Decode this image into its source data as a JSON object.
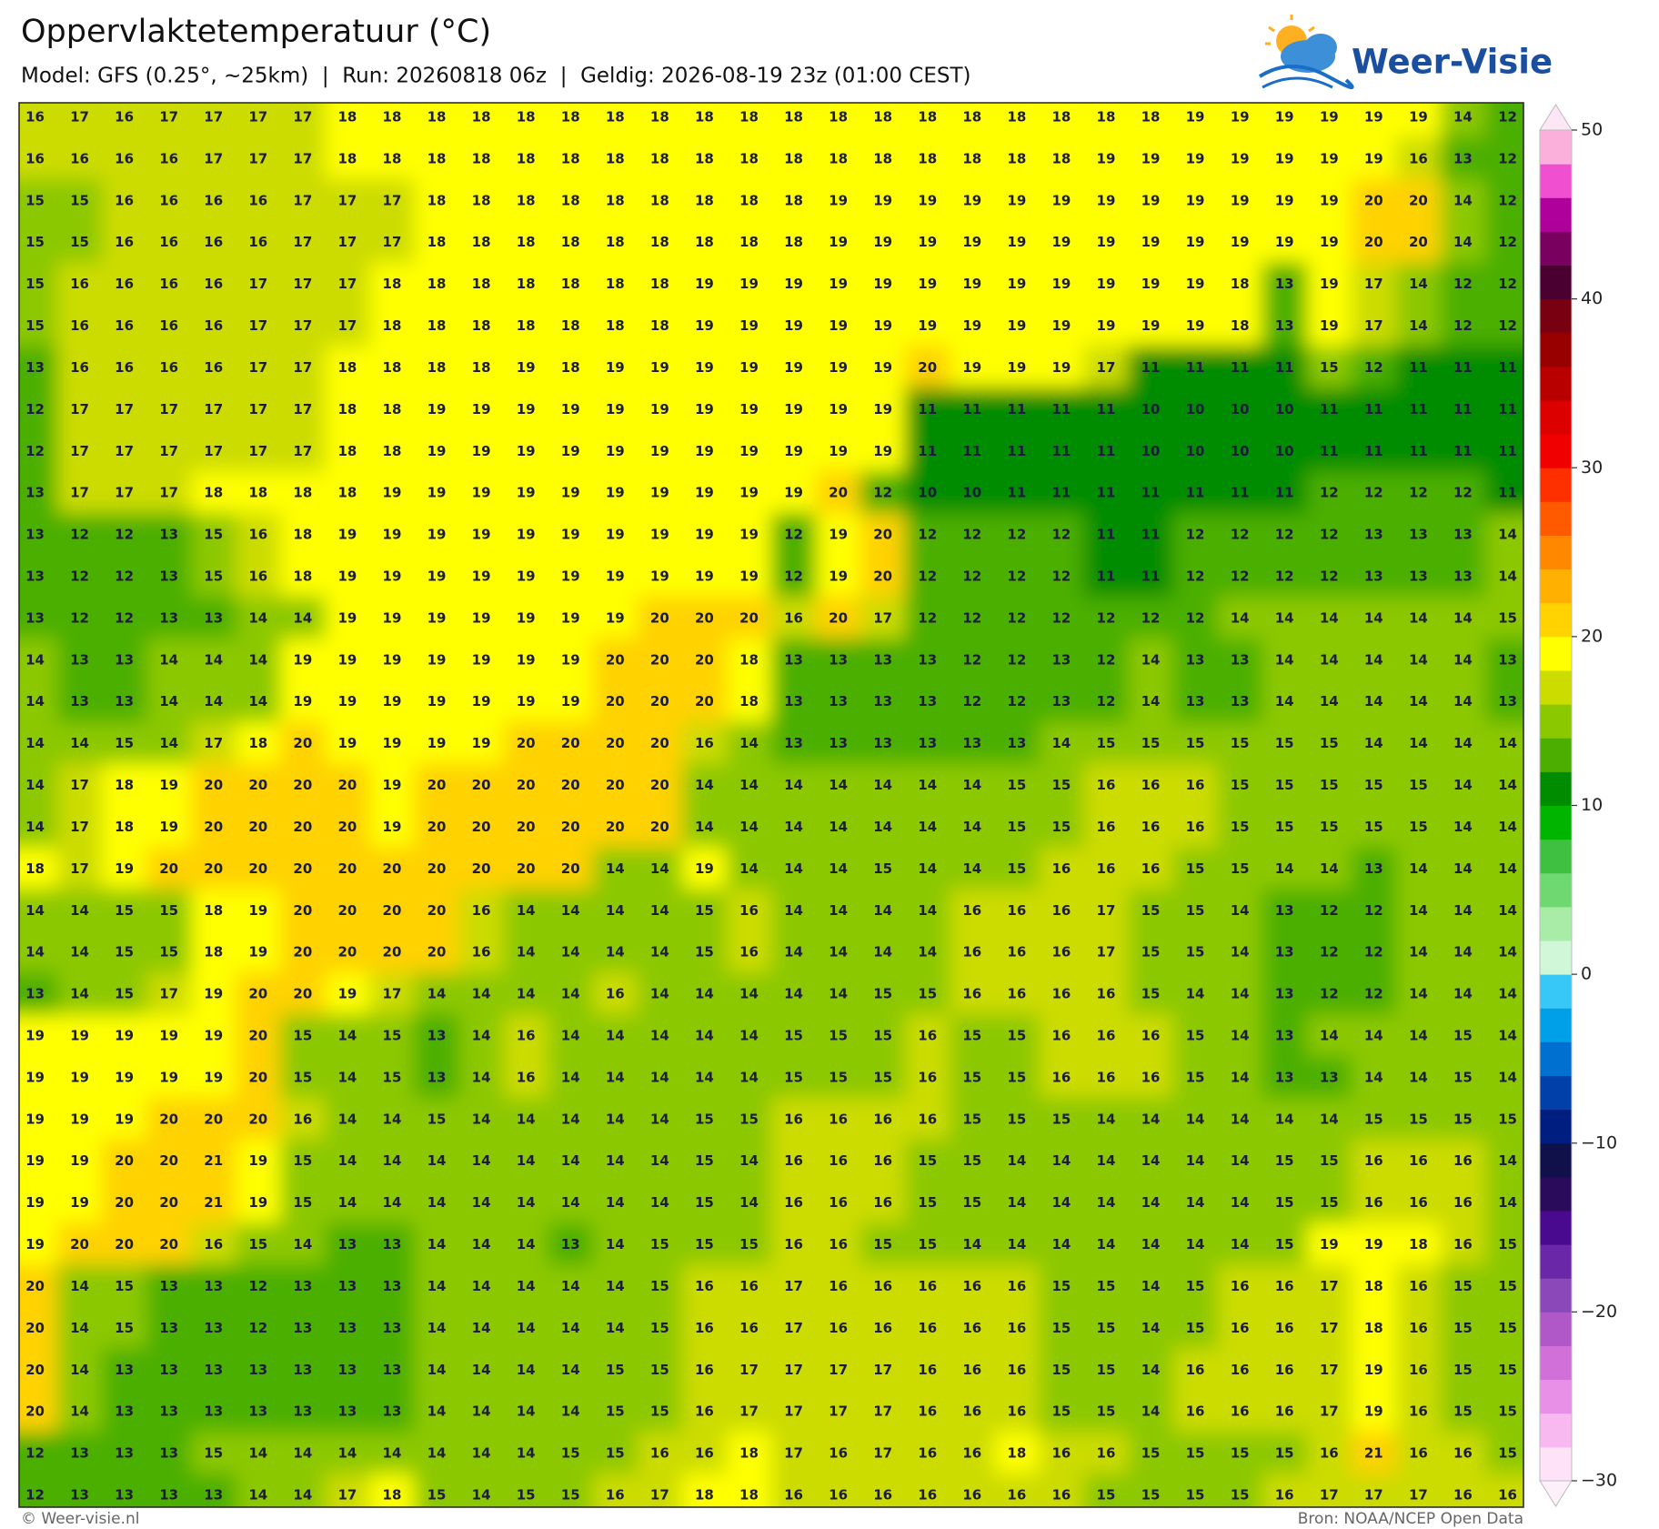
{
  "header": {
    "title": "Oppervlaktetemperatuur (°C)",
    "subtitle": "Model: GFS (0.25°, ~25km)  |  Run: 20260818 06z  |  Geldig: 2026-08-19 23z (01:00 CEST)",
    "logo": "Weer-Visie"
  },
  "chart_data": {
    "type": "heatmap",
    "values": [
      [
        16,
        17,
        16,
        17,
        17,
        17,
        17,
        18,
        18,
        18,
        18,
        18,
        18,
        18,
        18,
        18,
        18,
        18,
        18,
        18,
        18,
        18,
        18,
        18,
        18,
        18,
        19,
        19,
        19,
        19,
        19,
        19,
        14,
        12
      ],
      [
        16,
        16,
        16,
        16,
        17,
        17,
        17,
        18,
        18,
        18,
        18,
        18,
        18,
        18,
        18,
        18,
        18,
        18,
        18,
        18,
        18,
        18,
        18,
        18,
        19,
        19,
        19,
        19,
        19,
        19,
        19,
        16,
        13,
        12
      ],
      [
        15,
        15,
        16,
        16,
        16,
        16,
        17,
        17,
        17,
        18,
        18,
        18,
        18,
        18,
        18,
        18,
        18,
        18,
        19,
        19,
        19,
        19,
        19,
        19,
        19,
        19,
        19,
        19,
        19,
        19,
        20,
        20,
        14,
        12
      ],
      [
        15,
        15,
        16,
        16,
        16,
        16,
        17,
        17,
        17,
        18,
        18,
        18,
        18,
        18,
        18,
        18,
        18,
        18,
        19,
        19,
        19,
        19,
        19,
        19,
        19,
        19,
        19,
        19,
        19,
        19,
        20,
        20,
        14,
        12
      ],
      [
        15,
        16,
        16,
        16,
        16,
        17,
        17,
        17,
        18,
        18,
        18,
        18,
        18,
        18,
        18,
        19,
        19,
        19,
        19,
        19,
        19,
        19,
        19,
        19,
        19,
        19,
        19,
        18,
        13,
        19,
        17,
        14,
        12,
        12
      ],
      [
        15,
        16,
        16,
        16,
        16,
        17,
        17,
        17,
        18,
        18,
        18,
        18,
        18,
        18,
        18,
        19,
        19,
        19,
        19,
        19,
        19,
        19,
        19,
        19,
        19,
        19,
        19,
        18,
        13,
        19,
        17,
        14,
        12,
        12
      ],
      [
        13,
        16,
        16,
        16,
        16,
        17,
        17,
        18,
        18,
        18,
        18,
        19,
        18,
        19,
        19,
        19,
        19,
        19,
        19,
        19,
        20,
        19,
        19,
        19,
        17,
        11,
        11,
        11,
        11,
        15,
        12,
        11,
        11,
        11
      ],
      [
        12,
        17,
        17,
        17,
        17,
        17,
        17,
        18,
        18,
        19,
        19,
        19,
        19,
        19,
        19,
        19,
        19,
        19,
        19,
        19,
        11,
        11,
        11,
        11,
        11,
        10,
        10,
        10,
        10,
        11,
        11,
        11,
        11,
        11
      ],
      [
        12,
        17,
        17,
        17,
        17,
        17,
        17,
        18,
        18,
        19,
        19,
        19,
        19,
        19,
        19,
        19,
        19,
        19,
        19,
        19,
        11,
        11,
        11,
        11,
        11,
        10,
        10,
        10,
        10,
        11,
        11,
        11,
        11,
        11
      ],
      [
        13,
        17,
        17,
        17,
        18,
        18,
        18,
        18,
        19,
        19,
        19,
        19,
        19,
        19,
        19,
        19,
        19,
        19,
        20,
        12,
        10,
        10,
        11,
        11,
        11,
        11,
        11,
        11,
        11,
        12,
        12,
        12,
        12,
        11
      ],
      [
        13,
        12,
        12,
        13,
        15,
        16,
        18,
        19,
        19,
        19,
        19,
        19,
        19,
        19,
        19,
        19,
        19,
        12,
        19,
        20,
        12,
        12,
        12,
        12,
        11,
        11,
        12,
        12,
        12,
        12,
        13,
        13,
        13,
        14
      ],
      [
        13,
        12,
        12,
        13,
        15,
        16,
        18,
        19,
        19,
        19,
        19,
        19,
        19,
        19,
        19,
        19,
        19,
        12,
        19,
        20,
        12,
        12,
        12,
        12,
        11,
        11,
        12,
        12,
        12,
        12,
        13,
        13,
        13,
        14
      ],
      [
        13,
        12,
        12,
        13,
        13,
        14,
        14,
        19,
        19,
        19,
        19,
        19,
        19,
        19,
        20,
        20,
        20,
        16,
        20,
        17,
        12,
        12,
        12,
        12,
        12,
        12,
        12,
        14,
        14,
        14,
        14,
        14,
        14,
        15
      ],
      [
        14,
        13,
        13,
        14,
        14,
        14,
        19,
        19,
        19,
        19,
        19,
        19,
        19,
        20,
        20,
        20,
        18,
        13,
        13,
        13,
        13,
        12,
        12,
        13,
        12,
        14,
        13,
        13,
        14,
        14,
        14,
        14,
        14,
        13
      ],
      [
        14,
        13,
        13,
        14,
        14,
        14,
        19,
        19,
        19,
        19,
        19,
        19,
        19,
        20,
        20,
        20,
        18,
        13,
        13,
        13,
        13,
        12,
        12,
        13,
        12,
        14,
        13,
        13,
        14,
        14,
        14,
        14,
        14,
        13
      ],
      [
        14,
        14,
        15,
        14,
        17,
        18,
        20,
        19,
        19,
        19,
        19,
        20,
        20,
        20,
        20,
        16,
        14,
        13,
        13,
        13,
        13,
        13,
        13,
        14,
        15,
        15,
        15,
        15,
        15,
        15,
        14,
        14,
        14,
        14
      ],
      [
        14,
        17,
        18,
        19,
        20,
        20,
        20,
        20,
        19,
        20,
        20,
        20,
        20,
        20,
        20,
        14,
        14,
        14,
        14,
        14,
        14,
        14,
        15,
        15,
        16,
        16,
        16,
        15,
        15,
        15,
        15,
        15,
        14,
        14
      ],
      [
        14,
        17,
        18,
        19,
        20,
        20,
        20,
        20,
        19,
        20,
        20,
        20,
        20,
        20,
        20,
        14,
        14,
        14,
        14,
        14,
        14,
        14,
        15,
        15,
        16,
        16,
        16,
        15,
        15,
        15,
        15,
        15,
        14,
        14
      ],
      [
        18,
        17,
        19,
        20,
        20,
        20,
        20,
        20,
        20,
        20,
        20,
        20,
        20,
        14,
        14,
        19,
        14,
        14,
        14,
        15,
        14,
        14,
        15,
        16,
        16,
        16,
        15,
        15,
        14,
        14,
        13,
        14,
        14,
        14
      ],
      [
        14,
        14,
        15,
        15,
        18,
        19,
        20,
        20,
        20,
        20,
        16,
        14,
        14,
        14,
        14,
        15,
        16,
        14,
        14,
        14,
        14,
        16,
        16,
        16,
        17,
        15,
        15,
        14,
        13,
        12,
        12,
        14,
        14,
        14
      ],
      [
        14,
        14,
        15,
        15,
        18,
        19,
        20,
        20,
        20,
        20,
        16,
        14,
        14,
        14,
        14,
        15,
        16,
        14,
        14,
        14,
        14,
        16,
        16,
        16,
        17,
        15,
        15,
        14,
        13,
        12,
        12,
        14,
        14,
        14
      ],
      [
        13,
        14,
        15,
        17,
        19,
        20,
        20,
        19,
        17,
        14,
        14,
        14,
        14,
        16,
        14,
        14,
        14,
        14,
        14,
        15,
        15,
        16,
        16,
        16,
        16,
        15,
        14,
        14,
        13,
        12,
        12,
        14,
        14,
        14
      ],
      [
        19,
        19,
        19,
        19,
        19,
        20,
        15,
        14,
        15,
        13,
        14,
        16,
        14,
        14,
        14,
        14,
        14,
        15,
        15,
        15,
        16,
        15,
        15,
        16,
        16,
        16,
        15,
        14,
        13,
        14,
        14,
        14,
        15,
        14
      ],
      [
        19,
        19,
        19,
        19,
        19,
        20,
        15,
        14,
        15,
        13,
        14,
        16,
        14,
        14,
        14,
        14,
        14,
        15,
        15,
        15,
        16,
        15,
        15,
        16,
        16,
        16,
        15,
        14,
        13,
        13,
        14,
        14,
        15,
        14
      ],
      [
        19,
        19,
        19,
        20,
        20,
        20,
        16,
        14,
        14,
        15,
        14,
        14,
        14,
        14,
        14,
        15,
        15,
        16,
        16,
        16,
        16,
        15,
        15,
        15,
        14,
        14,
        14,
        14,
        14,
        14,
        15,
        15,
        15,
        15
      ],
      [
        19,
        19,
        20,
        20,
        21,
        19,
        15,
        14,
        14,
        14,
        14,
        14,
        14,
        14,
        14,
        15,
        14,
        16,
        16,
        16,
        15,
        15,
        14,
        14,
        14,
        14,
        14,
        14,
        15,
        15,
        16,
        16,
        16,
        14
      ],
      [
        19,
        19,
        20,
        20,
        21,
        19,
        15,
        14,
        14,
        14,
        14,
        14,
        14,
        14,
        14,
        15,
        14,
        16,
        16,
        16,
        15,
        15,
        14,
        14,
        14,
        14,
        14,
        14,
        15,
        15,
        16,
        16,
        16,
        14
      ],
      [
        19,
        20,
        20,
        20,
        16,
        15,
        14,
        13,
        13,
        14,
        14,
        14,
        13,
        14,
        15,
        15,
        15,
        16,
        16,
        15,
        15,
        14,
        14,
        14,
        14,
        14,
        14,
        14,
        15,
        19,
        19,
        18,
        16,
        15
      ],
      [
        20,
        14,
        15,
        13,
        13,
        12,
        13,
        13,
        13,
        14,
        14,
        14,
        14,
        14,
        15,
        16,
        16,
        17,
        16,
        16,
        16,
        16,
        16,
        15,
        15,
        14,
        15,
        16,
        16,
        17,
        18,
        16,
        15,
        15
      ],
      [
        20,
        14,
        15,
        13,
        13,
        12,
        13,
        13,
        13,
        14,
        14,
        14,
        14,
        14,
        15,
        16,
        16,
        17,
        16,
        16,
        16,
        16,
        16,
        15,
        15,
        14,
        15,
        16,
        16,
        17,
        18,
        16,
        15,
        15
      ],
      [
        20,
        14,
        13,
        13,
        13,
        13,
        13,
        13,
        13,
        14,
        14,
        14,
        14,
        15,
        15,
        16,
        17,
        17,
        17,
        17,
        16,
        16,
        16,
        15,
        15,
        14,
        16,
        16,
        16,
        17,
        19,
        16,
        15,
        15
      ],
      [
        20,
        14,
        13,
        13,
        13,
        13,
        13,
        13,
        13,
        14,
        14,
        14,
        14,
        15,
        15,
        16,
        17,
        17,
        17,
        17,
        16,
        16,
        16,
        15,
        15,
        14,
        16,
        16,
        16,
        17,
        19,
        16,
        15,
        15
      ],
      [
        12,
        13,
        13,
        13,
        15,
        14,
        14,
        14,
        14,
        14,
        14,
        14,
        15,
        15,
        16,
        16,
        18,
        17,
        16,
        17,
        16,
        16,
        18,
        16,
        16,
        15,
        15,
        15,
        15,
        16,
        21,
        16,
        16,
        15
      ],
      [
        12,
        13,
        13,
        13,
        13,
        14,
        14,
        17,
        18,
        15,
        14,
        15,
        15,
        16,
        17,
        18,
        18,
        16,
        16,
        16,
        16,
        16,
        16,
        16,
        15,
        15,
        15,
        15,
        16,
        17,
        17,
        17,
        16,
        16
      ]
    ],
    "colorbar": {
      "lim": [
        -30,
        50
      ],
      "ticks": [
        {
          "value": -30,
          "label": "−30"
        },
        {
          "value": -20,
          "label": "−20"
        },
        {
          "value": -10,
          "label": "−10"
        },
        0,
        10,
        20,
        30,
        40,
        50
      ],
      "colors": [
        "#fde2f8",
        "#f8b8f0",
        "#e890e8",
        "#d070d8",
        "#b058c8",
        "#8a48b8",
        "#6a28a8",
        "#4a0a90",
        "#2a0a5a",
        "#10104a",
        "#001e80",
        "#0040a8",
        "#0070d0",
        "#00a0e8",
        "#38c8f8",
        "#d0f8d8",
        "#a8eca8",
        "#70d870",
        "#40c040",
        "#00b400",
        "#008c00",
        "#4caf00",
        "#8cc800",
        "#ccdc00",
        "#ffff00",
        "#ffd200",
        "#ffb000",
        "#ff8800",
        "#ff5a00",
        "#ff3000",
        "#f00000",
        "#dc0000",
        "#b80000",
        "#980000",
        "#780010",
        "#4a0030",
        "#7a0060",
        "#b0009c",
        "#f050d0",
        "#fbb0dc"
      ],
      "under_color": "#fdf0fb",
      "over_color": "#fde6f5"
    }
  },
  "footer": {
    "left": "© Weer-visie.nl",
    "right": "Bron: NOAA/NCEP Open Data"
  }
}
